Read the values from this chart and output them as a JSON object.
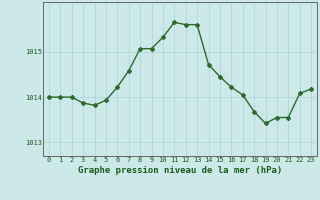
{
  "x": [
    0,
    1,
    2,
    3,
    4,
    5,
    6,
    7,
    8,
    9,
    10,
    11,
    12,
    13,
    14,
    15,
    16,
    17,
    18,
    19,
    20,
    21,
    22,
    23
  ],
  "y": [
    1014.0,
    1014.0,
    1014.0,
    1013.87,
    1013.82,
    1013.93,
    1014.22,
    1014.58,
    1015.07,
    1015.07,
    1015.32,
    1015.65,
    1015.6,
    1015.6,
    1014.72,
    1014.45,
    1014.22,
    1014.05,
    1013.68,
    1013.42,
    1013.55,
    1013.55,
    1014.08,
    1014.18
  ],
  "line_color": "#2d6a2d",
  "marker": "D",
  "markersize": 2.0,
  "linewidth": 1.0,
  "background_color": "#cce8e8",
  "grid_color": "#aad4d4",
  "xlabel": "Graphe pression niveau de la mer (hPa)",
  "xlabel_fontsize": 6.5,
  "xlabel_color": "#1a5c1a",
  "ylabel_ticks": [
    1013,
    1014,
    1015
  ],
  "ylim": [
    1012.7,
    1016.1
  ],
  "xlim": [
    -0.5,
    23.5
  ],
  "xtick_labels": [
    "0",
    "1",
    "2",
    "3",
    "4",
    "5",
    "6",
    "7",
    "8",
    "9",
    "10",
    "11",
    "12",
    "13",
    "14",
    "15",
    "16",
    "17",
    "18",
    "19",
    "20",
    "21",
    "22",
    "23"
  ],
  "tick_fontsize": 5.0,
  "tick_color": "#1a5c1a",
  "spine_color": "#666666"
}
